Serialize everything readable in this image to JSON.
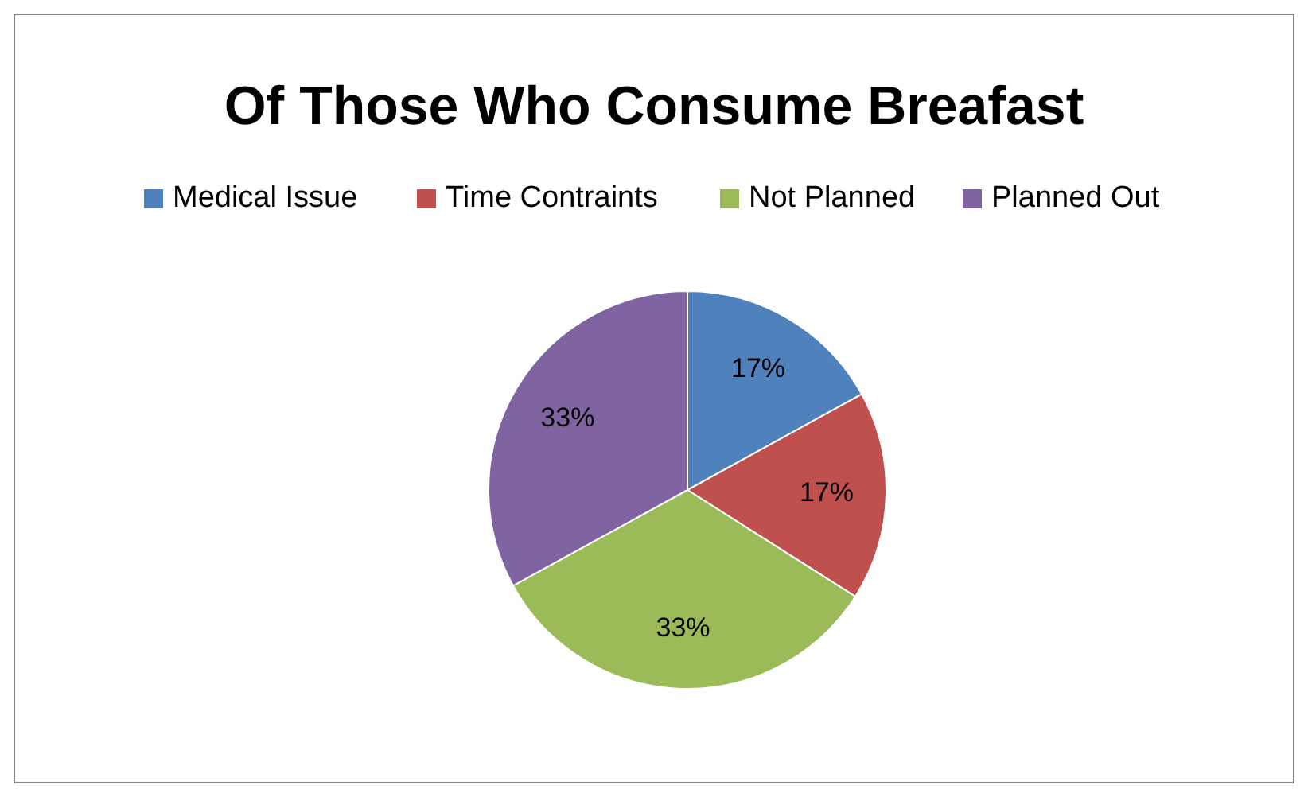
{
  "chart_data": {
    "type": "pie",
    "title": "Of Those Who Consume Breafast",
    "categories": [
      "Medical Issue",
      "Time Contraints",
      "Not Planned",
      "Planned Out"
    ],
    "values": [
      17,
      17,
      33,
      33
    ],
    "colors": [
      "#4f81bd",
      "#c0504d",
      "#9bbb59",
      "#8064a2"
    ],
    "value_labels": [
      "17%",
      "17%",
      "33%",
      "33%"
    ],
    "legend": "top"
  }
}
